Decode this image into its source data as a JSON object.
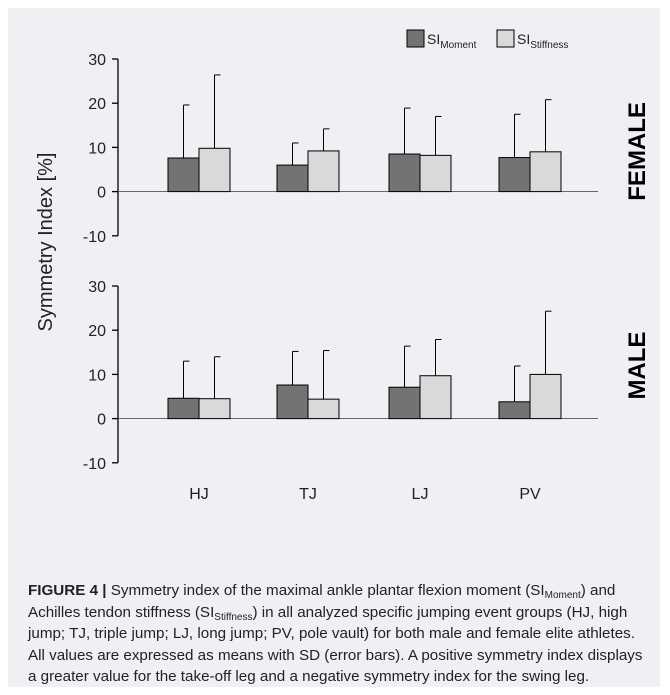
{
  "colors": {
    "moment": "#737373",
    "stiffness": "#d9d9d9",
    "background": "#eef0f3",
    "axis": "#000000"
  },
  "chart_data": {
    "type": "bar",
    "ylabel": "Symmetry Index [%]",
    "categories": [
      "HJ",
      "TJ",
      "LJ",
      "PV"
    ],
    "legend_placement": "top-right",
    "ylim": [
      -10,
      30
    ],
    "yticks": [
      30,
      20,
      10,
      0,
      -10
    ],
    "panels": [
      {
        "label": "FEMALE",
        "series": [
          {
            "name": "SI",
            "subscript": "Moment",
            "values": [
              7.6,
              6.0,
              8.5,
              7.7
            ],
            "sd": [
              12.0,
              5.0,
              10.4,
              9.8
            ]
          },
          {
            "name": "SI",
            "subscript": "Stiffness",
            "values": [
              9.8,
              9.2,
              8.2,
              9.0
            ],
            "sd": [
              16.6,
              5.0,
              8.8,
              11.8
            ]
          }
        ]
      },
      {
        "label": "MALE",
        "series": [
          {
            "name": "SI",
            "subscript": "Moment",
            "values": [
              4.6,
              7.6,
              7.1,
              3.8
            ],
            "sd": [
              8.4,
              7.6,
              9.3,
              8.1
            ]
          },
          {
            "name": "SI",
            "subscript": "Stiffness",
            "values": [
              4.5,
              4.4,
              9.7,
              10.0
            ],
            "sd": [
              9.5,
              11.0,
              8.2,
              14.3
            ]
          }
        ]
      }
    ]
  },
  "caption": {
    "label": "FIGURE 4 |",
    "t1": " Symmetry index of the maximal ankle plantar flexion moment (SI",
    "sub1": "Moment",
    "t2": ") and Achilles tendon stiffness (SI",
    "sub2": "Stiffness",
    "t3": ") in all analyzed specific jumping event groups (HJ, high jump; TJ, triple jump; LJ, long jump; PV, pole vault) for both male and female elite athletes. All values are expressed as means with SD (error bars). A positive symmetry index displays a greater value for the take-off leg and a negative symmetry index for the swing leg."
  }
}
